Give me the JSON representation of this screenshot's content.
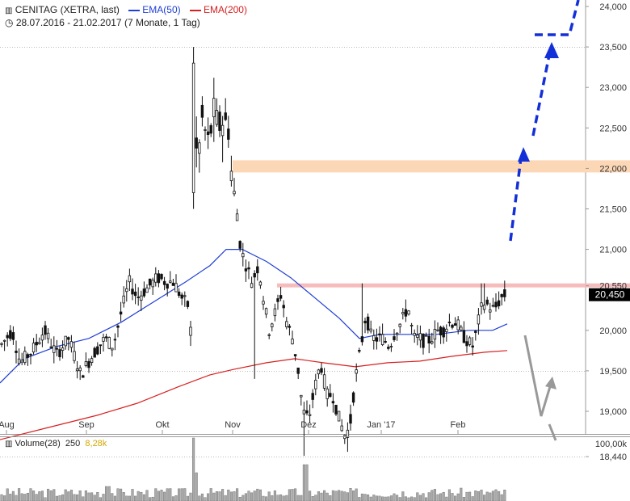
{
  "header": {
    "icon": "chart-bars-icon",
    "title": "CENITAG (XETRA, last)",
    "ema50_label": "EMA(50)",
    "ema200_label": "EMA(200)",
    "range_icon": "clock-icon",
    "date_range": "28.07.2016 - 21.02.2017",
    "period": "(7 Monate, 1 Tag)"
  },
  "volume_header": {
    "icon": "volume-bars-icon",
    "label": "Volume(28)",
    "value1": "250",
    "value2": "8,28k"
  },
  "colors": {
    "candle": "#111111",
    "ema50": "#1f3fd6",
    "ema200": "#d62020",
    "zone_upper": "#fcd7b6",
    "zone_lower": "#f6bcbc",
    "projection_up": "#1330d8",
    "projection_down": "#999999",
    "last_price_bg": "#000000",
    "grid": "#bbbbbb",
    "volume_bar": "#aaaaaa",
    "volume_highlight": "#e0b400"
  },
  "chart_data": {
    "type": "candlestick",
    "x_labels": [
      "Aug",
      "Sep",
      "Okt",
      "Nov",
      "Dez",
      "Jan '17",
      "Feb"
    ],
    "y_ticks": [
      "24,000",
      "23,500",
      "23,000",
      "22,500",
      "22,000",
      "21,500",
      "21,000",
      "20,550",
      "20,450",
      "20,000",
      "19,500",
      "19,000",
      "18,440"
    ],
    "ylim": [
      18400,
      24100
    ],
    "last_price": "20,450",
    "zones": [
      {
        "from": 21950,
        "to": 22100,
        "color": "#fcd7b6"
      },
      {
        "from": 20530,
        "to": 20580,
        "color": "#f6bcbc"
      }
    ],
    "levels": [
      23500,
      19500,
      18440
    ],
    "volume_axis_label": "100,00k"
  }
}
